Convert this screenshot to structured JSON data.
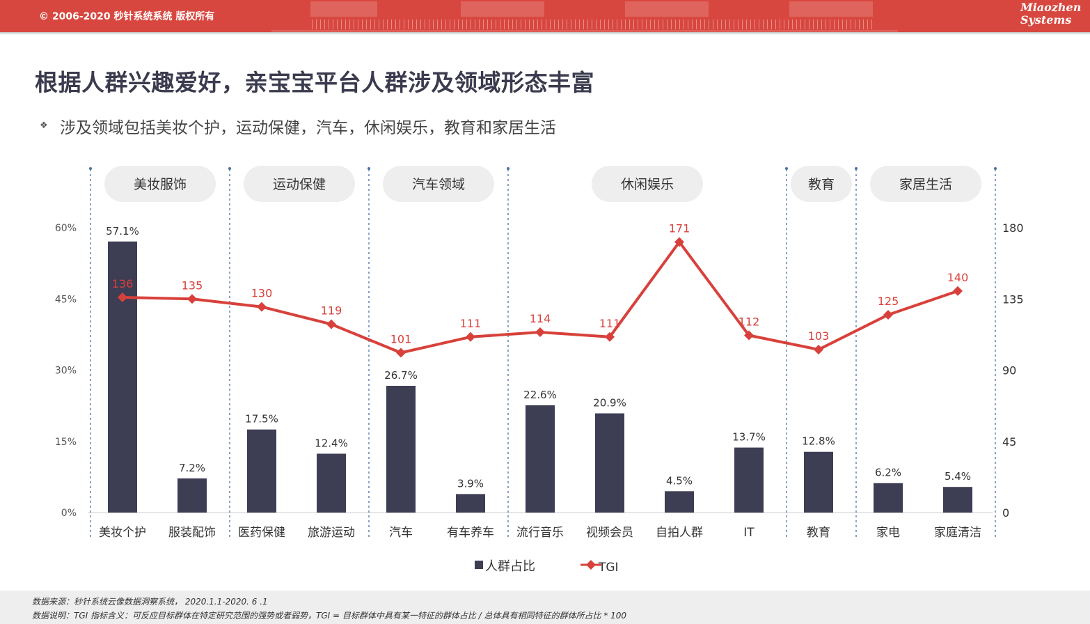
{
  "header": {
    "copyright": "© 2006-2020 秒针系统系统 版权所有",
    "logo_line1": "Miaozhen",
    "logo_line2": "Systems",
    "accent_color": "#d8473f"
  },
  "page": {
    "title": "根据人群兴趣爱好，亲宝宝平台人群涉及领域形态丰富",
    "subtitle": "涉及领域包括美妆个护，运动保健，汽车，休闲娱乐，教育和家居生活",
    "bullet_icon": "diamond-bullet-icon"
  },
  "chart_data": {
    "type": "bar",
    "categories": [
      "美妆个护",
      "服装配饰",
      "医药保健",
      "旅游运动",
      "汽车",
      "有车养车",
      "流行音乐",
      "视频会员",
      "自拍人群",
      "IT",
      "教育",
      "家电",
      "家庭清洁"
    ],
    "groups": [
      {
        "label": "美妆服饰",
        "categories": [
          "美妆个护",
          "服装配饰"
        ]
      },
      {
        "label": "运动保健",
        "categories": [
          "医药保健",
          "旅游运动"
        ]
      },
      {
        "label": "汽车领域",
        "categories": [
          "汽车",
          "有车养车"
        ]
      },
      {
        "label": "休闲娱乐",
        "categories": [
          "流行音乐",
          "视频会员",
          "自拍人群",
          "IT"
        ]
      },
      {
        "label": "教育",
        "categories": [
          "教育"
        ]
      },
      {
        "label": "家居生活",
        "categories": [
          "家电",
          "家庭清洁"
        ]
      }
    ],
    "series": [
      {
        "name": "人群占比",
        "type": "bar",
        "axis": "left",
        "color": "#3d3d54",
        "values": [
          57.1,
          7.2,
          17.5,
          12.4,
          26.7,
          3.9,
          22.6,
          20.9,
          4.5,
          13.7,
          12.8,
          6.2,
          5.4
        ],
        "labels": [
          "57.1%",
          "7.2%",
          "17.5%",
          "12.4%",
          "26.7%",
          "3.9%",
          "22.6%",
          "20.9%",
          "4.5%",
          "13.7%",
          "12.8%",
          "6.2%",
          "5.4%"
        ]
      },
      {
        "name": "TGI",
        "type": "line",
        "axis": "right",
        "color": "#d8413b",
        "values": [
          136,
          135,
          130,
          119,
          101,
          111,
          114,
          111,
          171,
          112,
          103,
          125,
          140
        ]
      }
    ],
    "y_left": {
      "ticks": [
        "0%",
        "15%",
        "30%",
        "45%",
        "60%"
      ],
      "ylim": [
        0,
        60
      ]
    },
    "y_right": {
      "ticks": [
        "0",
        "45",
        "90",
        "135",
        "180"
      ],
      "ylim": [
        0,
        180
      ]
    },
    "legend": {
      "position": "bottom-center"
    },
    "grid": false
  },
  "footer": {
    "source": "数据来源：秒针系统云像数据洞察系统， 2020.1.1-2020. 6 .1",
    "note": "数据说明：TGI 指标含义：可反应目标群体在特定研究范围的强势或者弱势，TGI = 目标群体中具有某一特征的群体占比 / 总体具有相同特征的群体所占比 * 100"
  }
}
